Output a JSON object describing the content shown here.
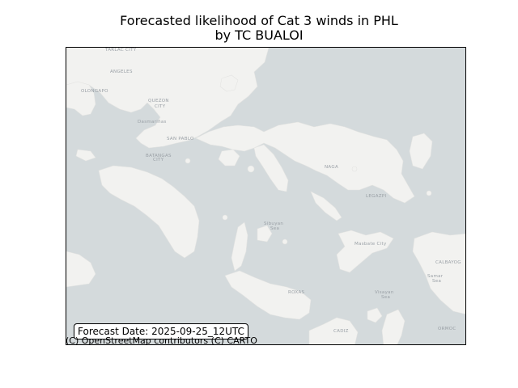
{
  "title": "Forecasted likelihood of Cat 3 winds in PHL",
  "subtitle": "by TC BUALOI",
  "forecast_label": "Forecast Date: 2025-09-25_12UTC",
  "attribution": "(C) OpenStreetMap contributors (C) CARTO",
  "colors": {
    "water": "#d4dadc",
    "land": "#f2f2f0",
    "label": "#9aa0a6",
    "frame": "#000000"
  },
  "map": {
    "place_labels": [
      {
        "name": "TARLAC CITY"
      },
      {
        "name": "ANGELES"
      },
      {
        "name": "OLONGAPO"
      },
      {
        "name": "QUEZON CITY"
      },
      {
        "name": "Dasmariñas"
      },
      {
        "name": "SAN PABLO"
      },
      {
        "name": "BATANGAS CITY"
      },
      {
        "name": "NAGA"
      },
      {
        "name": "LEGAZPI"
      },
      {
        "name": "Sibuyan Sea"
      },
      {
        "name": "Masbate City"
      },
      {
        "name": "CALBAYOG"
      },
      {
        "name": "Samar Sea"
      },
      {
        "name": "ROXAS"
      },
      {
        "name": "Visayan Sea"
      },
      {
        "name": "CADIZ"
      },
      {
        "name": "ORMOC"
      }
    ]
  }
}
